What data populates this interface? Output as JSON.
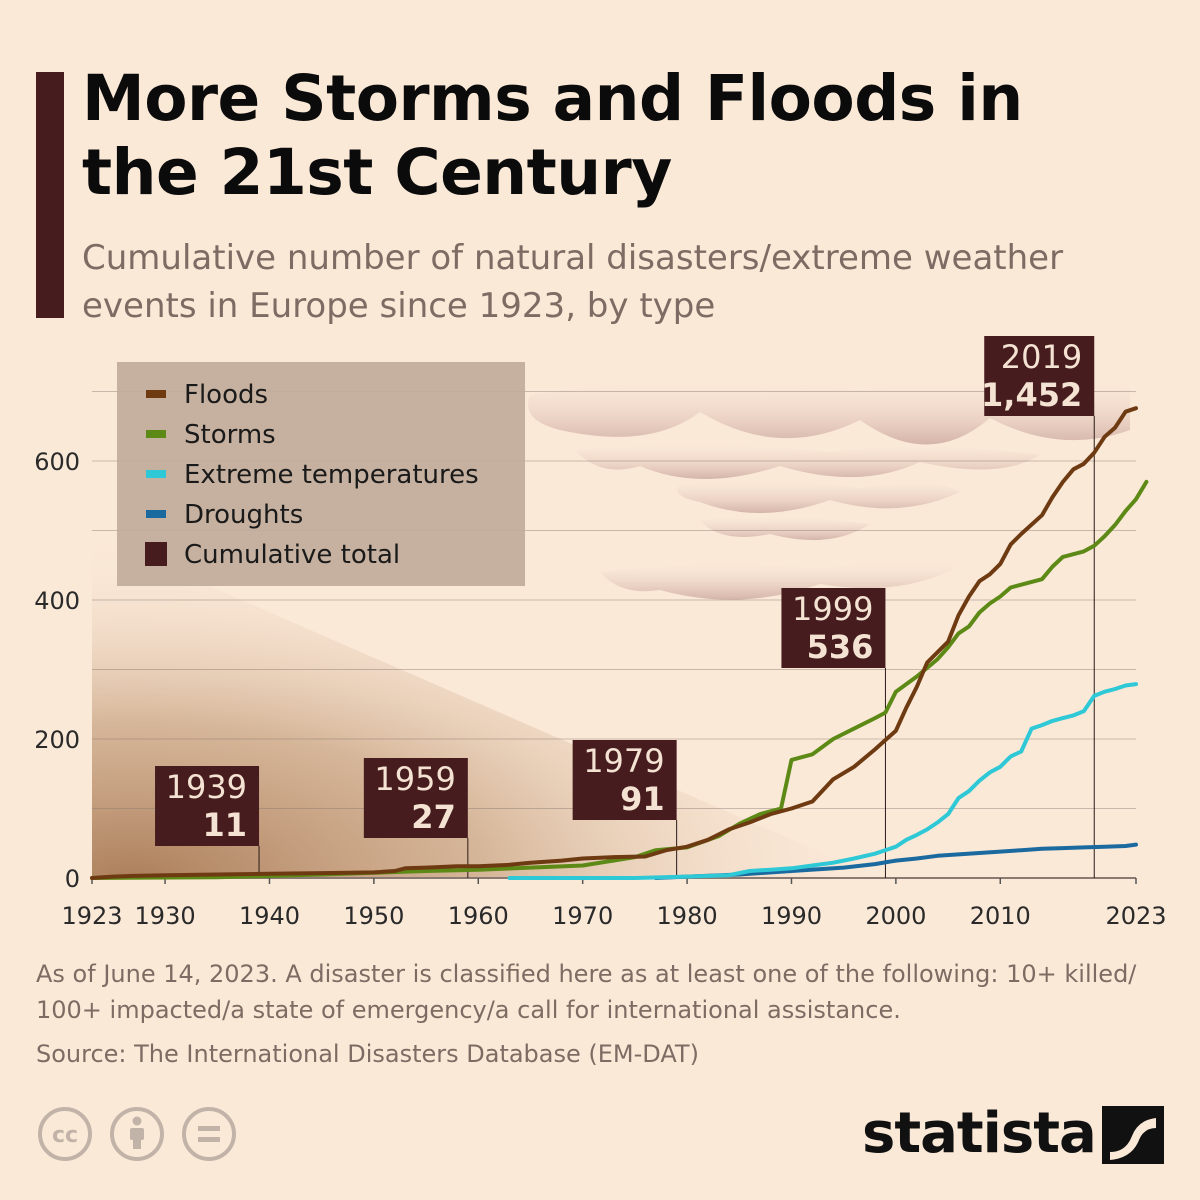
{
  "header": {
    "title": "More Storms and Floods in the 21st Century",
    "subtitle": "Cumulative number of natural disasters/extreme weather events in Europe since 1923, by type"
  },
  "chart_data": {
    "type": "line",
    "title": "More Storms and Floods in the 21st Century",
    "xlim": [
      1923,
      2023
    ],
    "ylim": [
      0,
      700
    ],
    "y_ticks": [
      0,
      200,
      400,
      600
    ],
    "x_ticks": [
      1923,
      1930,
      1940,
      1950,
      1960,
      1970,
      1980,
      1990,
      2000,
      2010,
      2023
    ],
    "grid": true,
    "legend_position": "top-left",
    "series": [
      {
        "name": "Floods",
        "color": "#6e3a12",
        "points": [
          [
            1923,
            0
          ],
          [
            1925,
            2
          ],
          [
            1927,
            3
          ],
          [
            1930,
            4
          ],
          [
            1935,
            5
          ],
          [
            1940,
            6
          ],
          [
            1945,
            7
          ],
          [
            1950,
            8
          ],
          [
            1952,
            10
          ],
          [
            1953,
            14
          ],
          [
            1955,
            15
          ],
          [
            1958,
            17
          ],
          [
            1960,
            17
          ],
          [
            1963,
            19
          ],
          [
            1965,
            22
          ],
          [
            1968,
            25
          ],
          [
            1970,
            28
          ],
          [
            1973,
            30
          ],
          [
            1976,
            31
          ],
          [
            1978,
            40
          ],
          [
            1980,
            45
          ],
          [
            1982,
            55
          ],
          [
            1984,
            70
          ],
          [
            1986,
            80
          ],
          [
            1988,
            92
          ],
          [
            1990,
            100
          ],
          [
            1992,
            110
          ],
          [
            1994,
            142
          ],
          [
            1996,
            160
          ],
          [
            1998,
            185
          ],
          [
            2000,
            212
          ],
          [
            2001,
            245
          ],
          [
            2002,
            275
          ],
          [
            2003,
            310
          ],
          [
            2005,
            340
          ],
          [
            2006,
            378
          ],
          [
            2007,
            405
          ],
          [
            2008,
            427
          ],
          [
            2009,
            437
          ],
          [
            2010,
            452
          ],
          [
            2011,
            480
          ],
          [
            2012,
            495
          ],
          [
            2014,
            522
          ],
          [
            2015,
            548
          ],
          [
            2016,
            570
          ],
          [
            2017,
            588
          ],
          [
            2018,
            596
          ],
          [
            2019,
            612
          ],
          [
            2020,
            635
          ],
          [
            2021,
            648
          ],
          [
            2022,
            671
          ],
          [
            2023,
            676
          ]
        ]
      },
      {
        "name": "Storms",
        "color": "#5d8a16",
        "points": [
          [
            1923,
            0
          ],
          [
            1935,
            1
          ],
          [
            1945,
            5
          ],
          [
            1955,
            10
          ],
          [
            1960,
            12
          ],
          [
            1965,
            15
          ],
          [
            1970,
            18
          ],
          [
            1975,
            30
          ],
          [
            1977,
            40
          ],
          [
            1980,
            44
          ],
          [
            1983,
            60
          ],
          [
            1985,
            78
          ],
          [
            1987,
            92
          ],
          [
            1989,
            100
          ],
          [
            1990,
            170
          ],
          [
            1992,
            178
          ],
          [
            1994,
            200
          ],
          [
            1996,
            215
          ],
          [
            1998,
            230
          ],
          [
            1999,
            238
          ],
          [
            2000,
            268
          ],
          [
            2002,
            290
          ],
          [
            2004,
            315
          ],
          [
            2005,
            332
          ],
          [
            2006,
            352
          ],
          [
            2007,
            362
          ],
          [
            2008,
            382
          ],
          [
            2009,
            395
          ],
          [
            2010,
            405
          ],
          [
            2011,
            418
          ],
          [
            2012,
            422
          ],
          [
            2014,
            430
          ],
          [
            2015,
            448
          ],
          [
            2016,
            462
          ],
          [
            2018,
            470
          ],
          [
            2019,
            478
          ],
          [
            2020,
            492
          ],
          [
            2021,
            508
          ],
          [
            2022,
            528
          ],
          [
            2023,
            545
          ],
          [
            2024,
            570
          ]
        ]
      },
      {
        "name": "Extreme temperatures",
        "color": "#2ec8d6",
        "points": [
          [
            1963,
            0
          ],
          [
            1975,
            0
          ],
          [
            1980,
            2
          ],
          [
            1984,
            4
          ],
          [
            1986,
            10
          ],
          [
            1988,
            12
          ],
          [
            1990,
            14
          ],
          [
            1992,
            18
          ],
          [
            1994,
            22
          ],
          [
            1996,
            28
          ],
          [
            1998,
            35
          ],
          [
            2000,
            45
          ],
          [
            2001,
            55
          ],
          [
            2002,
            62
          ],
          [
            2003,
            70
          ],
          [
            2004,
            80
          ],
          [
            2005,
            92
          ],
          [
            2006,
            115
          ],
          [
            2007,
            125
          ],
          [
            2008,
            140
          ],
          [
            2009,
            152
          ],
          [
            2010,
            160
          ],
          [
            2011,
            175
          ],
          [
            2012,
            182
          ],
          [
            2013,
            215
          ],
          [
            2014,
            220
          ],
          [
            2015,
            226
          ],
          [
            2016,
            230
          ],
          [
            2017,
            234
          ],
          [
            2018,
            240
          ],
          [
            2019,
            262
          ],
          [
            2020,
            268
          ],
          [
            2021,
            272
          ],
          [
            2022,
            277
          ],
          [
            2023,
            279
          ]
        ]
      },
      {
        "name": "Droughts",
        "color": "#1a6aa0",
        "points": [
          [
            1977,
            0
          ],
          [
            1980,
            2
          ],
          [
            1985,
            5
          ],
          [
            1990,
            10
          ],
          [
            1995,
            15
          ],
          [
            1998,
            20
          ],
          [
            2000,
            25
          ],
          [
            2002,
            28
          ],
          [
            2004,
            32
          ],
          [
            2006,
            34
          ],
          [
            2008,
            36
          ],
          [
            2010,
            38
          ],
          [
            2012,
            40
          ],
          [
            2014,
            42
          ],
          [
            2016,
            43
          ],
          [
            2018,
            44
          ],
          [
            2020,
            45
          ],
          [
            2022,
            46
          ],
          [
            2023,
            48
          ]
        ]
      }
    ],
    "cumulative_total": {
      "name": "Cumulative total",
      "color": "#461c1e",
      "markers": [
        {
          "year": "1939",
          "value": "11"
        },
        {
          "year": "1959",
          "value": "27"
        },
        {
          "year": "1979",
          "value": "91"
        },
        {
          "year": "1999",
          "value": "536"
        },
        {
          "year": "2019",
          "value": "1,452"
        }
      ]
    }
  },
  "footer": {
    "note": "As of June 14, 2023. A disaster is classified here as at least one of the following: 10+ killed/ 100+ impacted/a state of emergency/a call for international assistance.",
    "source": "Source: The International Disasters Database (EM-DAT)",
    "brand": "statista",
    "license_icons": [
      "cc-icon",
      "attribution-icon",
      "no-derivatives-icon"
    ]
  }
}
